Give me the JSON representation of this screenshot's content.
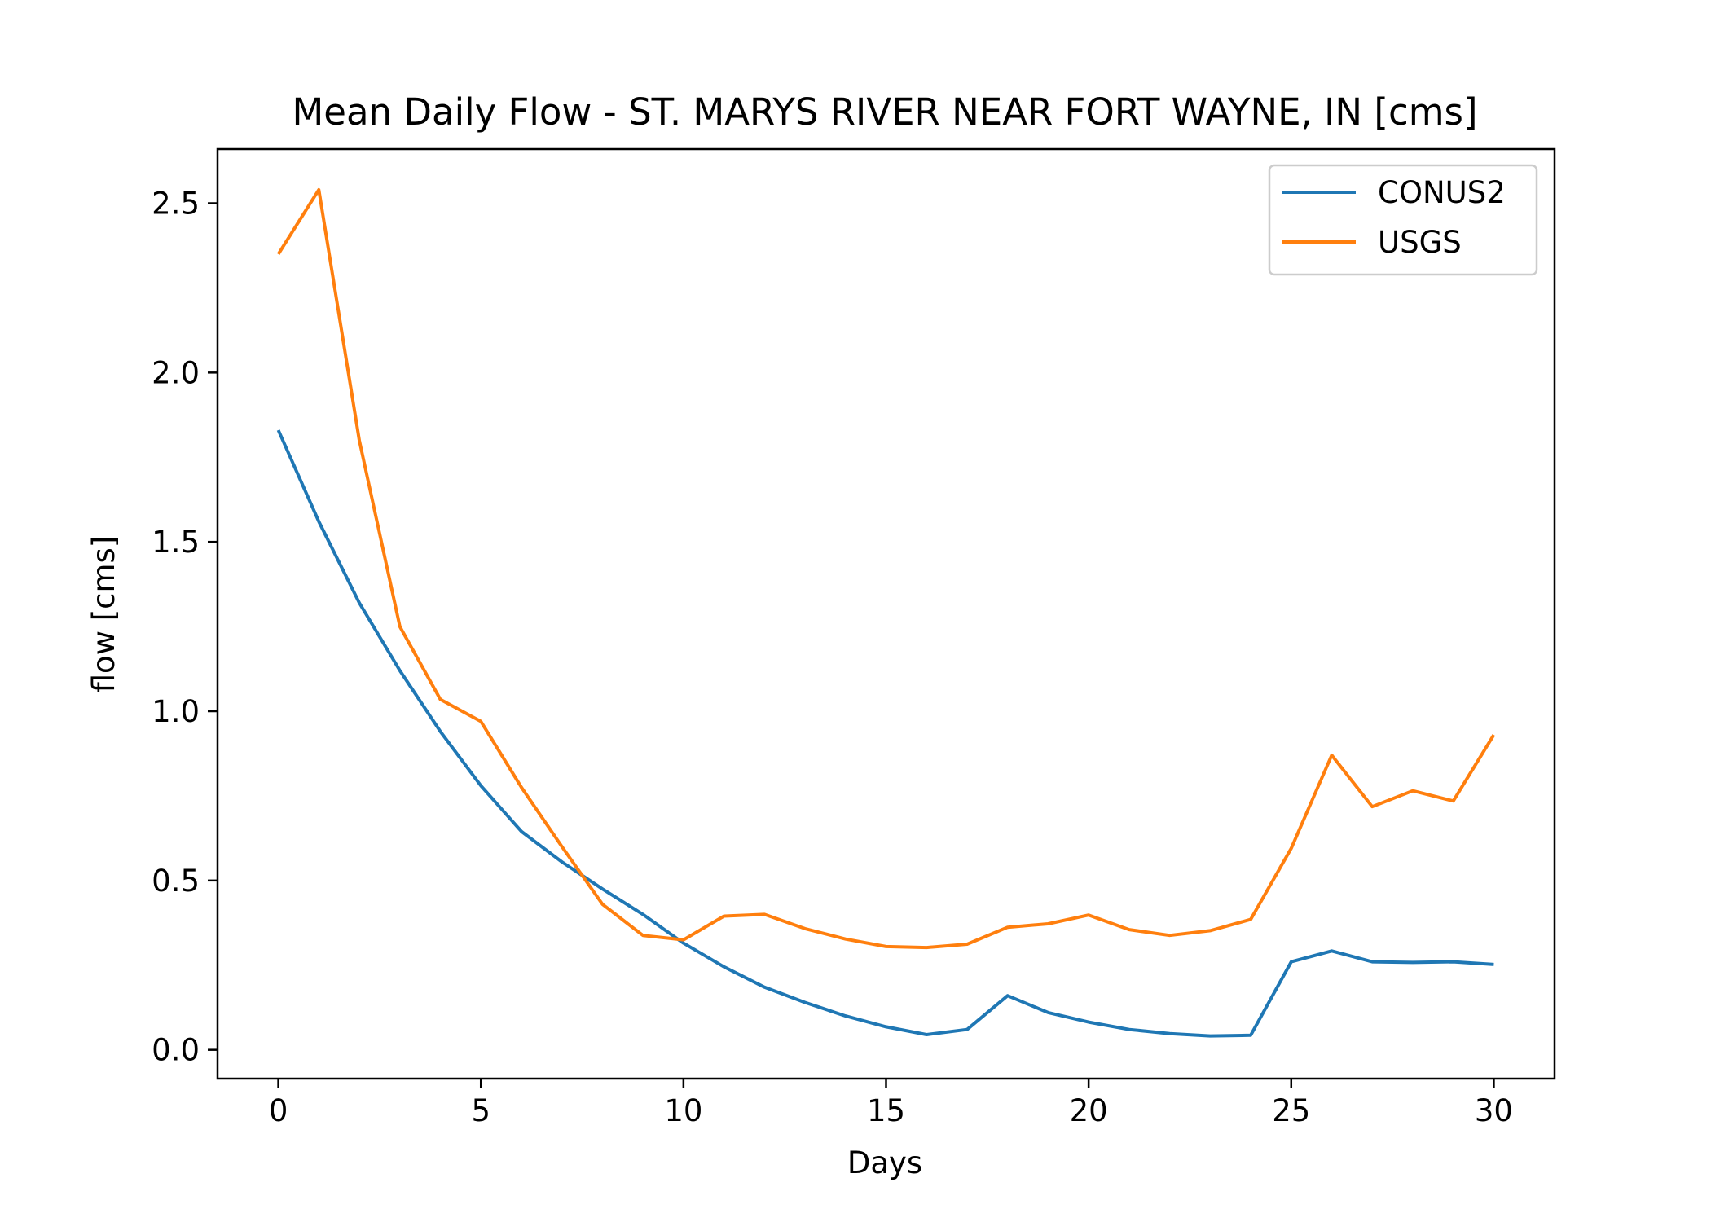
{
  "chart_data": {
    "type": "line",
    "title": "Mean Daily Flow - ST. MARYS RIVER NEAR FORT WAYNE, IN [cms]",
    "xlabel": "Days",
    "ylabel": "flow [cms]",
    "xlim": [
      -1.5,
      31.5
    ],
    "ylim": [
      -0.085,
      2.66
    ],
    "xticks": [
      0,
      5,
      10,
      15,
      20,
      25,
      30
    ],
    "xtick_labels": [
      "0",
      "5",
      "10",
      "15",
      "20",
      "25",
      "30"
    ],
    "yticks": [
      0.0,
      0.5,
      1.0,
      1.5,
      2.0,
      2.5
    ],
    "ytick_labels": [
      "0.0",
      "0.5",
      "1.0",
      "1.5",
      "2.0",
      "2.5"
    ],
    "grid": false,
    "legend_position": "top-right",
    "x": [
      0,
      1,
      2,
      3,
      4,
      5,
      6,
      7,
      8,
      9,
      10,
      11,
      12,
      13,
      14,
      15,
      16,
      17,
      18,
      19,
      20,
      21,
      22,
      23,
      24,
      25,
      26,
      27,
      28,
      29,
      30
    ],
    "series": [
      {
        "name": "CONUS2",
        "color": "#1f77b4",
        "values": [
          1.83,
          1.56,
          1.32,
          1.12,
          0.94,
          0.78,
          0.645,
          0.555,
          0.475,
          0.4,
          0.315,
          0.245,
          0.185,
          0.14,
          0.1,
          0.068,
          0.045,
          0.06,
          0.16,
          0.11,
          0.082,
          0.06,
          0.048,
          0.041,
          0.043,
          0.26,
          0.292,
          0.26,
          0.258,
          0.26,
          0.252
        ]
      },
      {
        "name": "USGS",
        "color": "#ff7f0e",
        "values": [
          2.35,
          2.54,
          1.8,
          1.25,
          1.035,
          0.97,
          0.775,
          0.6,
          0.43,
          0.338,
          0.325,
          0.395,
          0.4,
          0.358,
          0.327,
          0.305,
          0.302,
          0.312,
          0.362,
          0.372,
          0.398,
          0.355,
          0.338,
          0.352,
          0.385,
          0.595,
          0.87,
          0.718,
          0.765,
          0.735,
          0.93
        ]
      }
    ]
  }
}
